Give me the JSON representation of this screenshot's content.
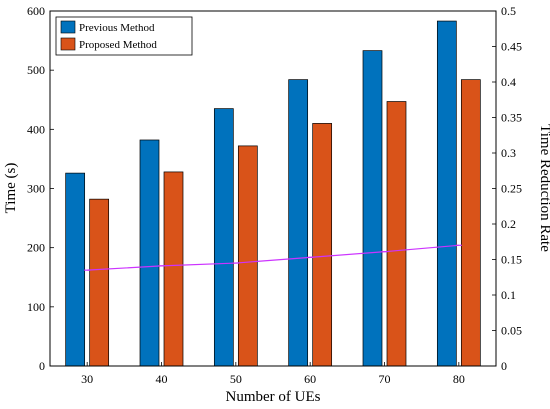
{
  "chart_data": {
    "type": "bar",
    "categories": [
      "30",
      "40",
      "50",
      "60",
      "70",
      "80"
    ],
    "series": [
      {
        "name": "Previous Method",
        "axis": "left",
        "color": "#0072BD",
        "values": [
          326,
          382,
          435,
          484,
          533,
          583
        ]
      },
      {
        "name": "Proposed Method",
        "axis": "left",
        "color": "#D95319",
        "values": [
          282,
          328,
          372,
          410,
          447,
          484
        ]
      }
    ],
    "line_series": {
      "name": "",
      "axis": "right",
      "color": "#CC33FF",
      "values": [
        0.135,
        0.141,
        0.145,
        0.153,
        0.161,
        0.17
      ]
    },
    "xlabel": "Number of UEs",
    "ylabel": "Time (s)",
    "y2label": "Time Reduction Rate",
    "ylim": [
      0,
      600
    ],
    "y2lim": [
      0,
      0.5
    ],
    "yticks": [
      "0",
      "100",
      "200",
      "300",
      "400",
      "500",
      "600"
    ],
    "y2ticks": [
      "0",
      "0.05",
      "0.1",
      "0.15",
      "0.2",
      "0.25",
      "0.3",
      "0.35",
      "0.4",
      "0.45",
      "0.5"
    ],
    "legend_position": "top-left",
    "grid": false
  }
}
